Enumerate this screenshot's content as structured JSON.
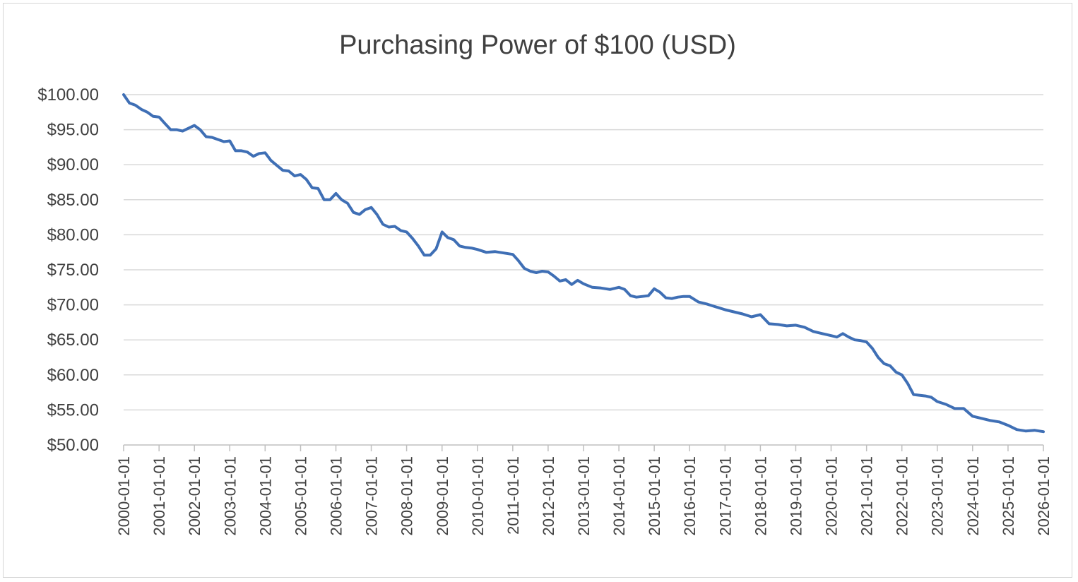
{
  "chart_data": {
    "type": "line",
    "title": "Purchasing Power of $100 (USD)",
    "xlabel": "",
    "ylabel": "",
    "ylim": [
      50,
      100
    ],
    "xlim": [
      "2000-01-01",
      "2026-01-01"
    ],
    "y_ticks": [
      "$50.00",
      "$55.00",
      "$60.00",
      "$65.00",
      "$70.00",
      "$75.00",
      "$80.00",
      "$85.00",
      "$90.00",
      "$95.00",
      "$100.00"
    ],
    "x_ticks": [
      "2000-01-01",
      "2001-01-01",
      "2002-01-01",
      "2003-01-01",
      "2004-01-01",
      "2005-01-01",
      "2006-01-01",
      "2007-01-01",
      "2008-01-01",
      "2009-01-01",
      "2010-01-01",
      "2011-01-01",
      "2012-01-01",
      "2013-01-01",
      "2014-01-01",
      "2015-01-01",
      "2016-01-01",
      "2017-01-01",
      "2018-01-01",
      "2019-01-01",
      "2020-01-01",
      "2021-01-01",
      "2022-01-01",
      "2023-01-01",
      "2024-01-01",
      "2025-01-01",
      "2026-01-01"
    ],
    "grid": true,
    "legend": "none",
    "line_color": "#3f6fb5",
    "series": [
      {
        "x": [
          "2000-01-01",
          "2000-03-01",
          "2000-05-01",
          "2000-07-01",
          "2000-09-01",
          "2000-11-01",
          "2001-01-01",
          "2001-03-01",
          "2001-05-01",
          "2001-07-01",
          "2001-09-01",
          "2001-11-01",
          "2002-01-01",
          "2002-03-01",
          "2002-05-01",
          "2002-07-01",
          "2002-09-01",
          "2002-11-01",
          "2003-01-01",
          "2003-03-01",
          "2003-05-01",
          "2003-07-01",
          "2003-09-01",
          "2003-11-01",
          "2004-01-01",
          "2004-03-01",
          "2004-05-01",
          "2004-07-01",
          "2004-09-01",
          "2004-11-01",
          "2005-01-01",
          "2005-03-01",
          "2005-05-01",
          "2005-07-01",
          "2005-09-01",
          "2005-11-01",
          "2006-01-01",
          "2006-03-01",
          "2006-05-01",
          "2006-07-01",
          "2006-09-01",
          "2006-11-01",
          "2007-01-01",
          "2007-03-01",
          "2007-05-01",
          "2007-07-01",
          "2007-09-01",
          "2007-11-01",
          "2008-01-01",
          "2008-03-01",
          "2008-05-01",
          "2008-07-01",
          "2008-09-01",
          "2008-11-01",
          "2009-01-01",
          "2009-03-01",
          "2009-05-01",
          "2009-07-01",
          "2009-09-01",
          "2009-11-01",
          "2010-01-01",
          "2010-04-01",
          "2010-07-01",
          "2010-10-01",
          "2011-01-01",
          "2011-03-01",
          "2011-05-01",
          "2011-07-01",
          "2011-09-01",
          "2011-11-01",
          "2012-01-01",
          "2012-03-01",
          "2012-05-01",
          "2012-07-01",
          "2012-09-01",
          "2012-11-01",
          "2013-01-01",
          "2013-04-01",
          "2013-07-01",
          "2013-10-01",
          "2014-01-01",
          "2014-03-01",
          "2014-05-01",
          "2014-07-01",
          "2014-09-01",
          "2014-11-01",
          "2015-01-01",
          "2015-03-01",
          "2015-05-01",
          "2015-07-01",
          "2015-09-01",
          "2015-11-01",
          "2016-01-01",
          "2016-04-01",
          "2016-07-01",
          "2016-10-01",
          "2017-01-01",
          "2017-04-01",
          "2017-07-01",
          "2017-10-01",
          "2018-01-01",
          "2018-04-01",
          "2018-07-01",
          "2018-10-01",
          "2019-01-01",
          "2019-04-01",
          "2019-07-01",
          "2019-10-01",
          "2020-01-01",
          "2020-03-01",
          "2020-05-01",
          "2020-07-01",
          "2020-09-01",
          "2020-11-01",
          "2021-01-01",
          "2021-03-01",
          "2021-05-01",
          "2021-07-01",
          "2021-09-01",
          "2021-11-01",
          "2022-01-01",
          "2022-03-01",
          "2022-05-01",
          "2022-07-01",
          "2022-09-01",
          "2022-11-01",
          "2023-01-01",
          "2023-04-01",
          "2023-07-01",
          "2023-10-01",
          "2024-01-01",
          "2024-04-01",
          "2024-07-01",
          "2024-10-01",
          "2025-01-01",
          "2025-04-01",
          "2025-07-01",
          "2025-10-01",
          "2026-01-01"
        ],
        "y": [
          100.0,
          98.8,
          98.5,
          97.9,
          97.5,
          96.9,
          96.8,
          95.9,
          95.0,
          95.0,
          94.8,
          95.2,
          95.6,
          95.0,
          94.0,
          93.9,
          93.6,
          93.3,
          93.4,
          92.0,
          92.0,
          91.8,
          91.2,
          91.6,
          91.7,
          90.6,
          89.9,
          89.2,
          89.1,
          88.4,
          88.6,
          87.9,
          86.7,
          86.6,
          85.0,
          85.0,
          85.9,
          85.0,
          84.5,
          83.2,
          82.9,
          83.6,
          83.9,
          82.9,
          81.5,
          81.1,
          81.2,
          80.6,
          80.4,
          79.5,
          78.4,
          77.1,
          77.1,
          78.0,
          80.4,
          79.6,
          79.3,
          78.4,
          78.2,
          78.1,
          77.9,
          77.5,
          77.6,
          77.4,
          77.2,
          76.3,
          75.2,
          74.8,
          74.6,
          74.8,
          74.7,
          74.1,
          73.4,
          73.6,
          72.9,
          73.5,
          73.0,
          72.5,
          72.4,
          72.2,
          72.5,
          72.2,
          71.3,
          71.1,
          71.2,
          71.3,
          72.3,
          71.8,
          71.0,
          70.9,
          71.1,
          71.2,
          71.2,
          70.4,
          70.1,
          69.7,
          69.3,
          69.0,
          68.7,
          68.3,
          68.6,
          67.3,
          67.2,
          67.0,
          67.1,
          66.8,
          66.2,
          65.9,
          65.6,
          65.4,
          65.9,
          65.4,
          65.0,
          64.9,
          64.7,
          63.8,
          62.5,
          61.6,
          61.3,
          60.4,
          60.0,
          58.8,
          57.2,
          57.1,
          57.0,
          56.8,
          56.2,
          55.8,
          55.2,
          55.2,
          54.1,
          53.8,
          53.5,
          53.3,
          52.8,
          52.2,
          52.0,
          52.1,
          51.9
        ]
      }
    ]
  }
}
